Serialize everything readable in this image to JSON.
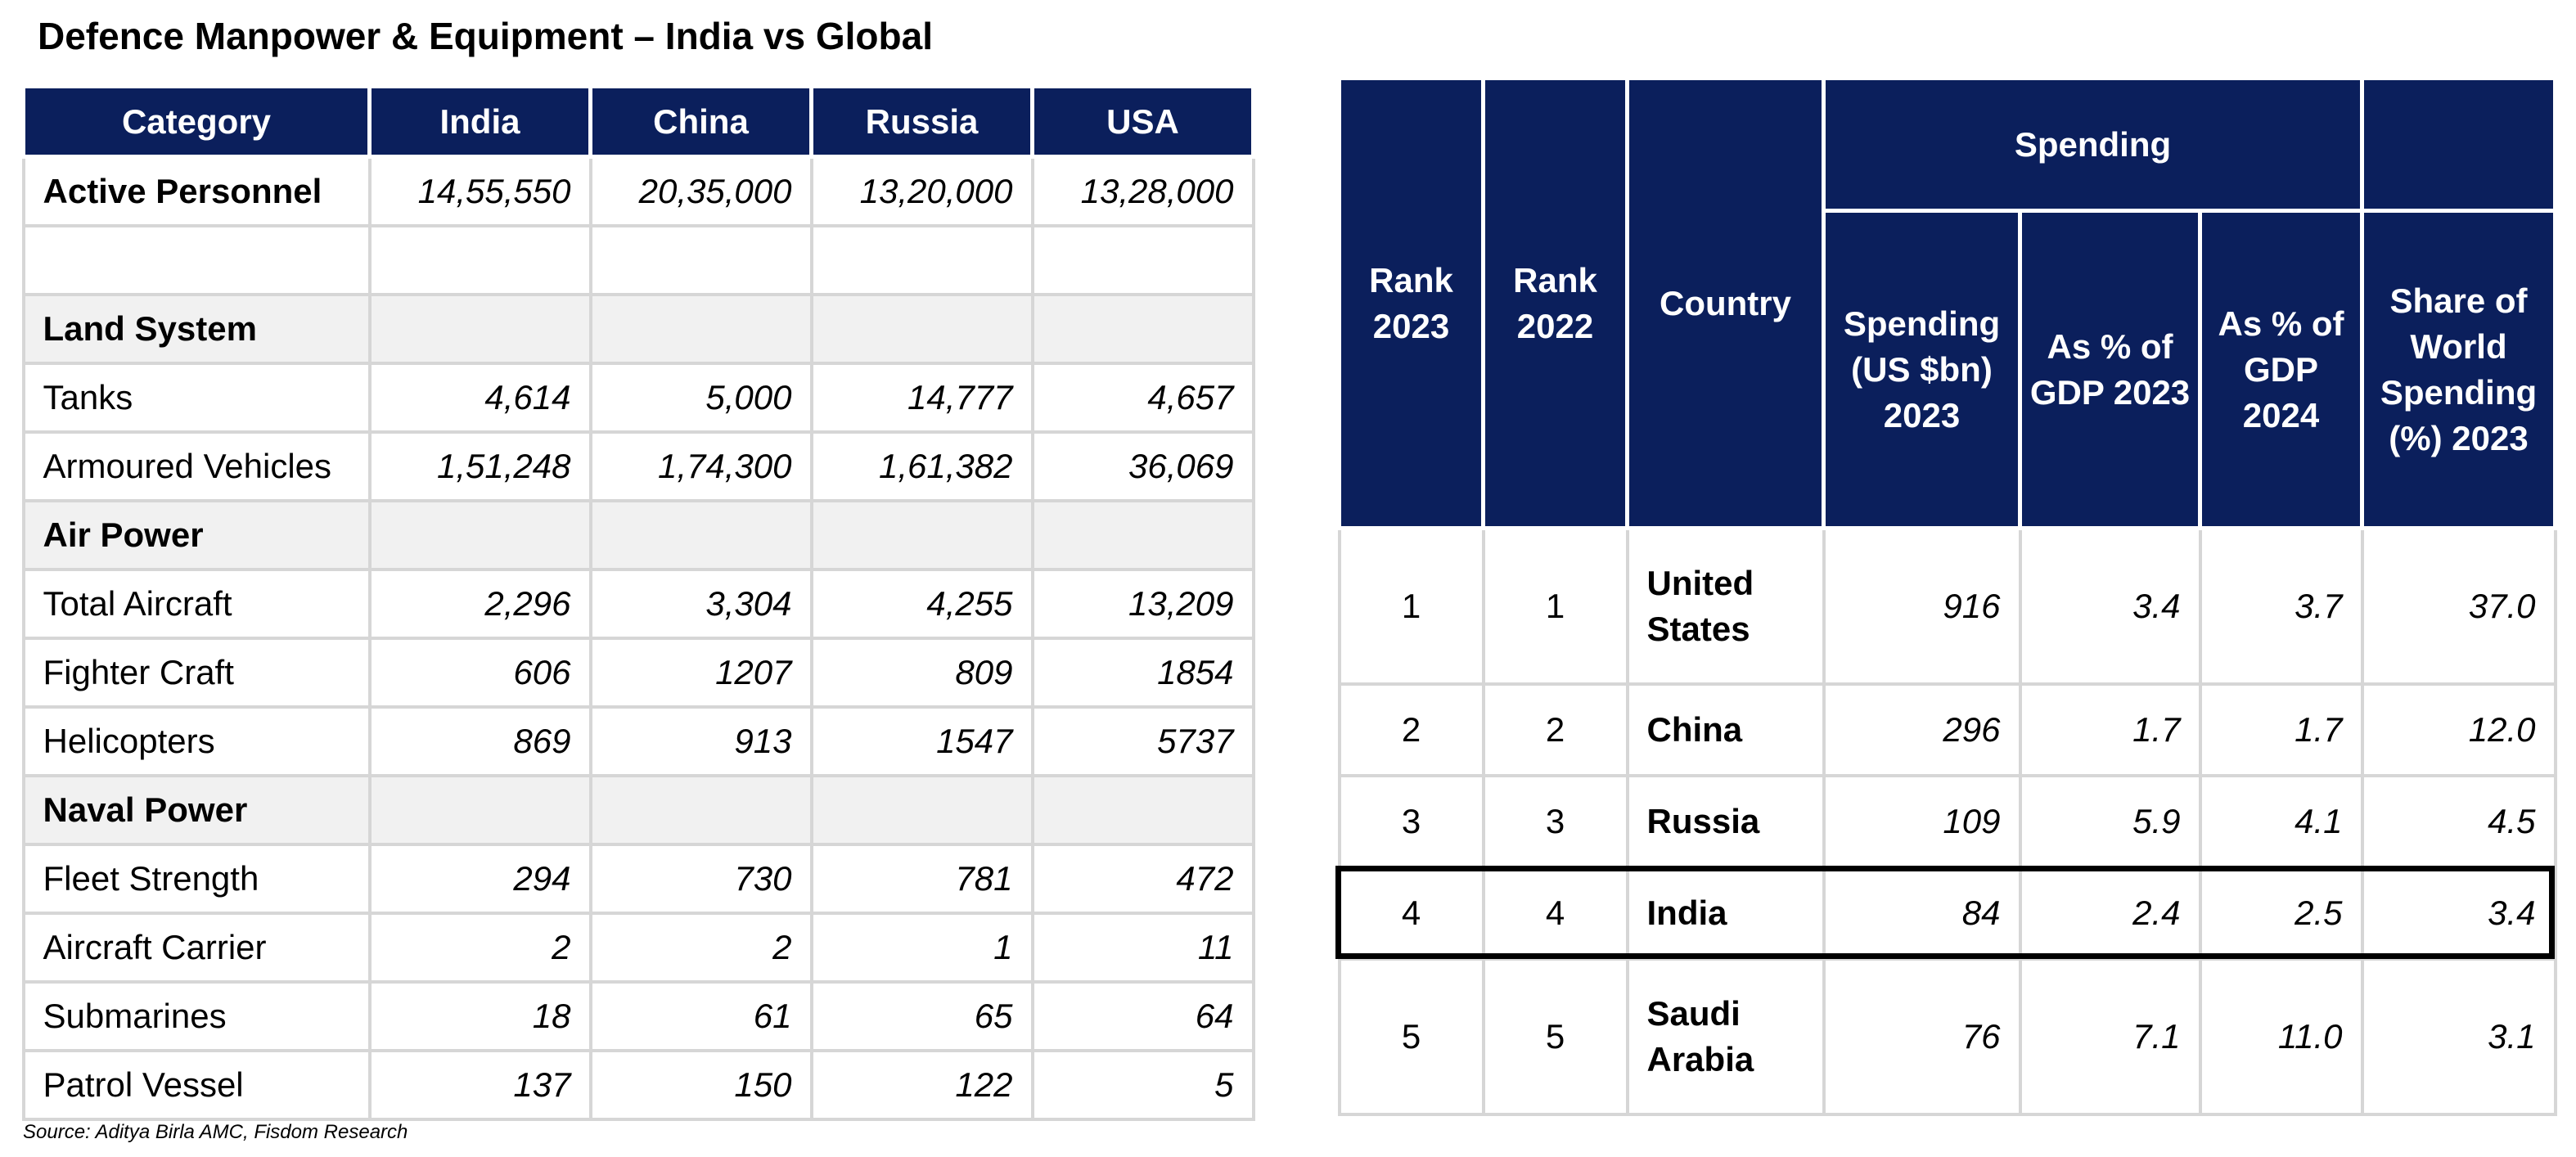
{
  "title": "Defence Manpower & Equipment – India vs Global",
  "source": "Source: Aditya Birla AMC, Fisdom Research",
  "left_table": {
    "headers": [
      "Category",
      "India",
      "China",
      "Russia",
      "USA"
    ],
    "rows": [
      {
        "label": "Active Personnel",
        "values": [
          "14,55,550",
          "20,35,000",
          "13,20,000",
          "13,28,000"
        ]
      },
      {
        "label": "",
        "values": [
          "",
          "",
          "",
          ""
        ]
      },
      {
        "label": "Land System",
        "values": [
          "",
          "",
          "",
          ""
        ]
      },
      {
        "label": "Tanks",
        "values": [
          "4,614",
          "5,000",
          "14,777",
          "4,657"
        ]
      },
      {
        "label": "Armoured Vehicles",
        "values": [
          "1,51,248",
          "1,74,300",
          "1,61,382",
          "36,069"
        ]
      },
      {
        "label": "Air Power",
        "values": [
          "",
          "",
          "",
          ""
        ]
      },
      {
        "label": "Total Aircraft",
        "values": [
          "2,296",
          "3,304",
          "4,255",
          "13,209"
        ]
      },
      {
        "label": "Fighter Craft",
        "values": [
          "606",
          "1207",
          "809",
          "1854"
        ]
      },
      {
        "label": "Helicopters",
        "values": [
          "869",
          "913",
          "1547",
          "5737"
        ]
      },
      {
        "label": "Naval Power",
        "values": [
          "",
          "",
          "",
          ""
        ]
      },
      {
        "label": "Fleet Strength",
        "values": [
          "294",
          "730",
          "781",
          "472"
        ]
      },
      {
        "label": "Aircraft Carrier",
        "values": [
          "2",
          "2",
          "1",
          "11"
        ]
      },
      {
        "label": "Submarines",
        "values": [
          "18",
          "61",
          "65",
          "64"
        ]
      },
      {
        "label": "Patrol Vessel",
        "values": [
          "137",
          "150",
          "122",
          "5"
        ]
      }
    ]
  },
  "right_table": {
    "headers": {
      "rank_2023": "Rank 2023",
      "rank_2022": "Rank 2022",
      "country": "Country",
      "spending_group": "Spending",
      "spending_usd": "Spending (US $bn) 2023",
      "gdp_2023": "As % of GDP 2023",
      "gdp_2024": "As % of GDP 2024",
      "world_share": "Share of World Spending (%) 2023"
    },
    "rows": [
      {
        "rank_2023": "1",
        "rank_2022": "1",
        "country": "United States",
        "spending": "916",
        "gdp_2023": "3.4",
        "gdp_2024": "3.7",
        "share": "37.0"
      },
      {
        "rank_2023": "2",
        "rank_2022": "2",
        "country": "China",
        "spending": "296",
        "gdp_2023": "1.7",
        "gdp_2024": "1.7",
        "share": "12.0"
      },
      {
        "rank_2023": "3",
        "rank_2022": "3",
        "country": "Russia",
        "spending": "109",
        "gdp_2023": "5.9",
        "gdp_2024": "4.1",
        "share": "4.5"
      },
      {
        "rank_2023": "4",
        "rank_2022": "4",
        "country": "India",
        "spending": "84",
        "gdp_2023": "2.4",
        "gdp_2024": "2.5",
        "share": "3.4"
      },
      {
        "rank_2023": "5",
        "rank_2022": "5",
        "country": "Saudi Arabia",
        "spending": "76",
        "gdp_2023": "7.1",
        "gdp_2024": "11.0",
        "share": "3.1"
      }
    ],
    "highlighted_country": "India"
  },
  "colors": {
    "header_bg": "#0b1f5c",
    "section_bg": "#f1f1f1",
    "border": "#d6d6d6"
  }
}
